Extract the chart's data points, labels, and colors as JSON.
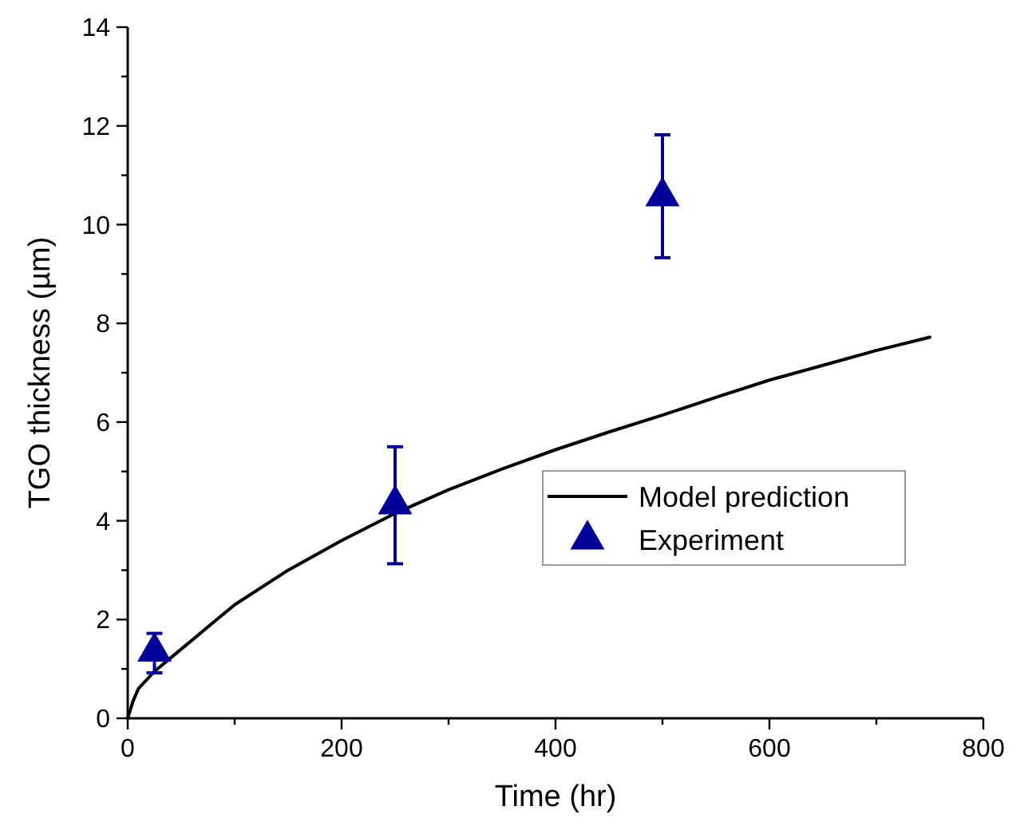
{
  "chart_data": {
    "type": "line",
    "xlabel": "Time (hr)",
    "ylabel": "TGO thickness (µm)",
    "xlim": [
      0,
      800
    ],
    "ylim": [
      0,
      14
    ],
    "xticks": [
      0,
      {
        "value": 100,
        "label": null
      },
      200,
      {
        "value": 300,
        "label": null
      },
      400,
      {
        "value": 500,
        "label": null
      },
      600,
      {
        "value": 700,
        "label": null
      },
      800
    ],
    "yticks": [
      0,
      {
        "value": 1,
        "label": null
      },
      2,
      {
        "value": 3,
        "label": null
      },
      4,
      {
        "value": 5,
        "label": null
      },
      6,
      {
        "value": 7,
        "label": null
      },
      8,
      {
        "value": 9,
        "label": null
      },
      10,
      {
        "value": 11,
        "label": null
      },
      12,
      {
        "value": 13,
        "label": null
      },
      14
    ],
    "grid": false,
    "legend": "right",
    "series": [
      {
        "name": "Model prediction",
        "color": "#000000",
        "marker": "none",
        "line_style": "solid",
        "x": [
          0,
          5,
          10,
          25,
          50,
          100,
          150,
          200,
          250,
          300,
          350,
          400,
          450,
          500,
          550,
          600,
          650,
          700,
          750
        ],
        "values": [
          0,
          0.35,
          0.6,
          0.95,
          1.4,
          2.3,
          3.0,
          3.6,
          4.15,
          4.63,
          5.05,
          5.44,
          5.8,
          6.14,
          6.5,
          6.85,
          7.15,
          7.45,
          7.72
        ]
      },
      {
        "name": "Experiment",
        "type": "scatter",
        "color": "#000099",
        "marker": "triangle",
        "x": [
          25,
          250,
          500
        ],
        "values": [
          1.35,
          4.33,
          10.57
        ],
        "errors": [
          [
            0.92,
            1.72
          ],
          [
            3.13,
            5.5
          ],
          [
            9.33,
            11.82
          ]
        ]
      }
    ]
  }
}
